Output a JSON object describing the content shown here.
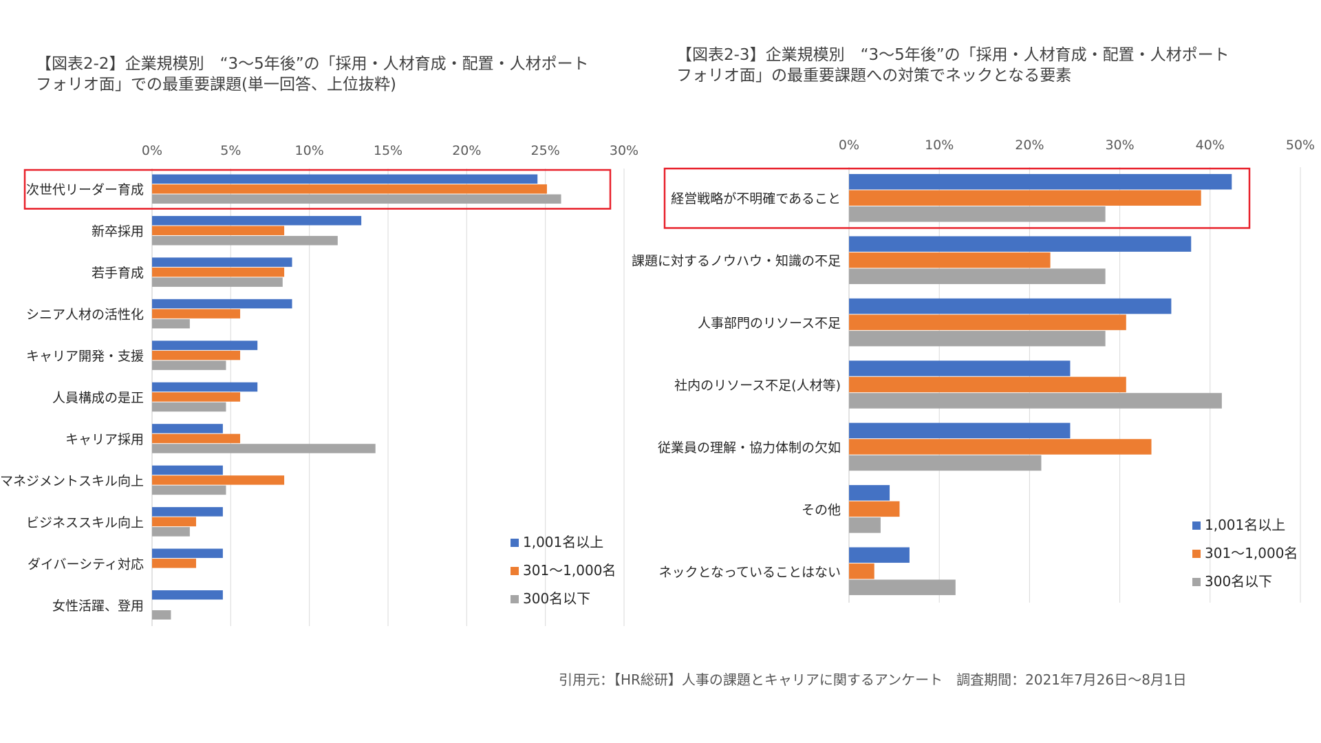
{
  "colors": {
    "series1": "#4472C4",
    "series2": "#ED7D31",
    "series3": "#A5A5A5",
    "highlight": "#E8202A",
    "axis": "#D9D9D9"
  },
  "chart_data": [
    {
      "type": "bar",
      "orientation": "horizontal",
      "title": "【図表2-2】企業規模別　“3～5年後”の「採用・人材育成・配置・人材ポート\nフォリオ面」での最重要課題(単一回答、上位抜粋)",
      "xlim": [
        0,
        30
      ],
      "ticks": [
        0,
        5,
        10,
        15,
        20,
        25,
        30
      ],
      "tick_labels": [
        "0%",
        "5%",
        "10%",
        "15%",
        "20%",
        "25%",
        "30%"
      ],
      "categories": [
        "次世代リーダー育成",
        "新卒採用",
        "若手育成",
        "シニア人材の活性化",
        "キャリア開発・支援",
        "人員構成の是正",
        "キャリア採用",
        "マネジメントスキル向上",
        "ビジネススキル向上",
        "ダイバーシティ対応",
        "女性活躍、登用"
      ],
      "series": [
        {
          "name": "1,001名以上",
          "values": [
            24.5,
            13.3,
            8.9,
            8.9,
            6.7,
            6.7,
            4.5,
            4.5,
            4.5,
            4.5,
            4.5
          ]
        },
        {
          "name": "301～1,000名",
          "values": [
            25.1,
            8.4,
            8.4,
            5.6,
            5.6,
            5.6,
            5.6,
            8.4,
            2.8,
            2.8,
            0
          ]
        },
        {
          "name": "300名以下",
          "values": [
            26.0,
            11.8,
            8.3,
            2.4,
            4.7,
            4.7,
            14.2,
            4.7,
            2.4,
            0,
            1.2
          ]
        }
      ],
      "highlighted_category": "次世代リーダー育成",
      "legend_position": "bottom-right"
    },
    {
      "type": "bar",
      "orientation": "horizontal",
      "title": "【図表2-3】企業規模別　“3～5年後”の「採用・人材育成・配置・人材ポート\nフォリオ面」の最重要課題への対策でネックとなる要素",
      "xlim": [
        0,
        50
      ],
      "ticks": [
        0,
        10,
        20,
        30,
        40,
        50
      ],
      "tick_labels": [
        "0%",
        "10%",
        "20%",
        "30%",
        "40%",
        "50%"
      ],
      "categories": [
        "経営戦略が不明確であること",
        "課題に対するノウハウ・知識の不足",
        "人事部門のリソース不足",
        "社内のリソース不足(人材等)",
        "従業員の理解・協力体制の欠如",
        "その他",
        "ネックとなっていることはない"
      ],
      "series": [
        {
          "name": "1,001名以上",
          "values": [
            42.4,
            37.9,
            35.7,
            24.5,
            24.5,
            4.5,
            6.7
          ]
        },
        {
          "name": "301～1,000名",
          "values": [
            39.0,
            22.3,
            30.7,
            30.7,
            33.5,
            5.6,
            2.8
          ]
        },
        {
          "name": "300名以下",
          "values": [
            28.4,
            28.4,
            28.4,
            41.3,
            21.3,
            3.5,
            11.8
          ]
        }
      ],
      "highlighted_category": "経営戦略が不明確であること",
      "legend_position": "bottom-right"
    }
  ],
  "source": "引用元：【HR総研】人事の課題とキャリアに関するアンケート　調査期間：2021年7月26日～8月1日"
}
